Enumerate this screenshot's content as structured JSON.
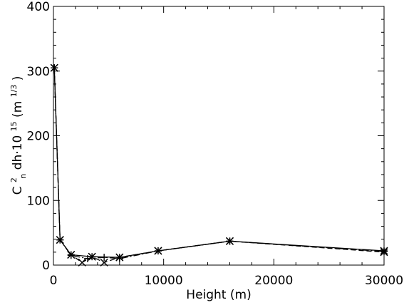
{
  "chart_data": {
    "type": "line",
    "xlabel": "Height (m)",
    "ylabel_parts": {
      "c": "C",
      "c_sup": "2",
      "c_sub": "n",
      "mid": " dh·10",
      "exp": "15",
      "unit_open": " (m",
      "unit_exp": "1/3",
      "unit_close": ")"
    },
    "xlim": [
      0,
      30000
    ],
    "ylim": [
      0,
      400
    ],
    "x_ticks": [
      0,
      10000,
      20000,
      30000
    ],
    "x_tick_labels": [
      "0",
      "10000",
      "20000",
      "30000"
    ],
    "y_ticks": [
      0,
      100,
      200,
      300,
      400
    ],
    "y_tick_labels": [
      "0",
      "100",
      "200",
      "300",
      "400"
    ],
    "grid": false,
    "series": [
      {
        "marker": "asterisk",
        "line": "solid",
        "points": [
          [
            80,
            305
          ],
          [
            600,
            39
          ],
          [
            1600,
            16
          ],
          [
            3500,
            13
          ],
          [
            6000,
            12
          ],
          [
            9500,
            22
          ],
          [
            16000,
            37
          ],
          [
            30000,
            22
          ]
        ]
      },
      {
        "marker": "x",
        "line": "dashed",
        "points": [
          [
            80,
            305
          ],
          [
            600,
            39
          ],
          [
            1600,
            16
          ],
          [
            2600,
            4
          ],
          [
            3500,
            13
          ],
          [
            4600,
            4
          ],
          [
            6000,
            12
          ],
          [
            9500,
            22
          ],
          [
            16000,
            37
          ],
          [
            30000,
            20
          ]
        ]
      },
      {
        "marker": "plus",
        "line": "dash-dot",
        "points": [
          [
            80,
            305
          ],
          [
            600,
            39
          ],
          [
            1600,
            15
          ],
          [
            3100,
            10
          ],
          [
            4600,
            12
          ],
          [
            6000,
            10
          ],
          [
            9500,
            22
          ],
          [
            16000,
            37
          ],
          [
            30000,
            21
          ]
        ]
      }
    ]
  }
}
